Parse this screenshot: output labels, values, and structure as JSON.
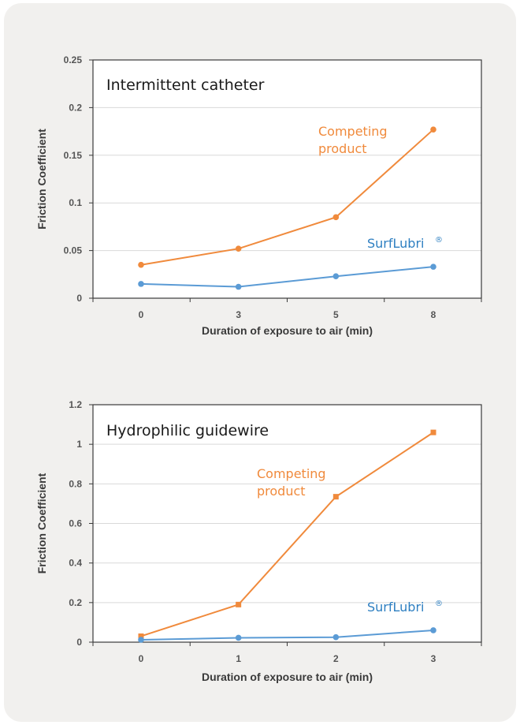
{
  "colors": {
    "competing": "#f08a3c",
    "surflubri": "#5b9bd5",
    "surflubri_text": "#2e7fc1",
    "grid": "#d9d9d9",
    "frame": "#3a3a3a"
  },
  "chart_data": [
    {
      "type": "line",
      "title": "Intermittent  catheter",
      "xlabel": "Duration of exposure to air (min)",
      "ylabel": "Friction Coefficient",
      "categories": [
        "0",
        "3",
        "5",
        "8"
      ],
      "ylim": [
        0,
        0.25
      ],
      "yticks": [
        "0",
        "0.05",
        "0.1",
        "0.15",
        "0.2",
        "0.25"
      ],
      "grid": true,
      "series": [
        {
          "name": "Competing product",
          "label_line1": "Competing",
          "label_line2": "product",
          "values": [
            0.035,
            0.052,
            0.085,
            0.177
          ]
        },
        {
          "name": "SurfLubri",
          "label_main": "SurfLubri",
          "label_sup": "®",
          "values": [
            0.015,
            0.012,
            0.023,
            0.033
          ]
        }
      ]
    },
    {
      "type": "line",
      "title": "Hydrophilic guidewire",
      "xlabel": "Duration of exposure to air (min)",
      "ylabel": "Friction Coefficient",
      "categories": [
        "0",
        "1",
        "2",
        "3"
      ],
      "ylim": [
        0,
        1.2
      ],
      "yticks": [
        "0",
        "0.2",
        "0.4",
        "0.6",
        "0.8",
        "1",
        "1.2"
      ],
      "grid": true,
      "series": [
        {
          "name": "Competing product",
          "label_line1": "Competing",
          "label_line2": "product",
          "values": [
            0.03,
            0.19,
            0.735,
            1.06
          ]
        },
        {
          "name": "SurfLubri",
          "label_main": "SurfLubri",
          "label_sup": "®",
          "values": [
            0.012,
            0.022,
            0.025,
            0.06
          ]
        }
      ]
    }
  ]
}
